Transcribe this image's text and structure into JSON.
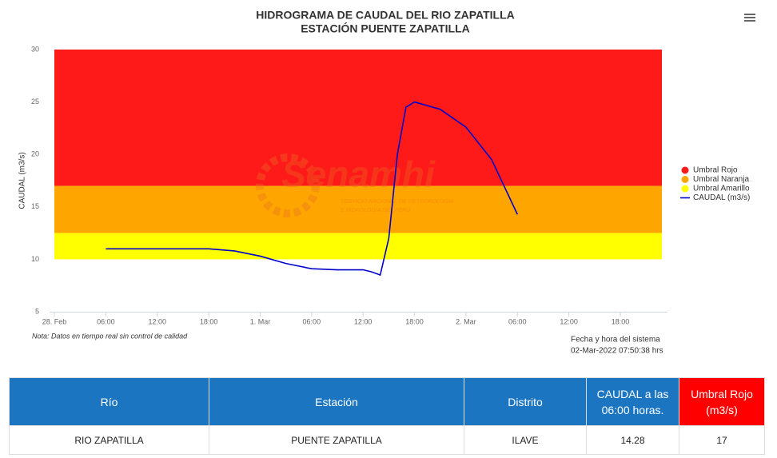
{
  "chart_data": {
    "type": "line",
    "title": "HIDROGRAMA DE CAUDAL DEL RIO ZAPATILLA",
    "subtitle": "ESTACIÓN PUENTE ZAPATILLA",
    "y_label": "CAUDAL (m3/s)",
    "ylim": [
      5,
      30
    ],
    "yticks": [
      5,
      10,
      15,
      20,
      25,
      30
    ],
    "xlim": [
      -0.56,
      71.5
    ],
    "xticks": [
      {
        "value": 0,
        "label": "28. Feb"
      },
      {
        "value": 6,
        "label": "06:00"
      },
      {
        "value": 12,
        "label": "12:00"
      },
      {
        "value": 18,
        "label": "18:00"
      },
      {
        "value": 24,
        "label": "1. Mar"
      },
      {
        "value": 30,
        "label": "06:00"
      },
      {
        "value": 36,
        "label": "12:00"
      },
      {
        "value": 42,
        "label": "18:00"
      },
      {
        "value": 48,
        "label": "2. Mar"
      },
      {
        "value": 54,
        "label": "06:00"
      },
      {
        "value": 60,
        "label": "12:00"
      },
      {
        "value": 66,
        "label": "18:00"
      }
    ],
    "bands": [
      {
        "name": "Umbral Rojo",
        "color": "#ff1a1a",
        "from": 17,
        "to": 30
      },
      {
        "name": "Umbral Naranja",
        "color": "#ffa500",
        "from": 12.5,
        "to": 17
      },
      {
        "name": "Umbral Amarillo",
        "color": "#ffff00",
        "from": 10,
        "to": 12.5
      }
    ],
    "series": [
      {
        "name": "CAUDAL (m3/s)",
        "color": "#0000cc",
        "x": [
          6,
          12,
          18,
          21,
          24,
          27,
          30,
          33,
          36,
          37,
          38,
          39,
          40,
          41,
          42,
          45,
          48,
          51,
          54
        ],
        "values": [
          11,
          11,
          11,
          10.8,
          10.3,
          9.6,
          9.1,
          9.0,
          9.0,
          8.8,
          8.5,
          12,
          20,
          24.5,
          25,
          24.3,
          22.6,
          19.5,
          14.28
        ]
      }
    ],
    "note": "Nota: Datos en tiempo real sin control de calidad",
    "system_label": "Fecha y hora del sistema",
    "system_time": "02-Mar-2022 07:50:38 hrs",
    "watermark": {
      "brand": "Senamhi",
      "line1": "SERVICIO NACIONAL DE METEOROLOGÍA",
      "line2": "E HIDROLOGÍA DEL PERÚ"
    }
  },
  "table": {
    "header": [
      "Río",
      "Estación",
      "Distrito",
      "CAUDAL a las 06:00 horas.",
      "Umbral Rojo (m3/s)"
    ],
    "rows": [
      [
        "RIO ZAPATILLA",
        "PUENTE ZAPATILLA",
        "ILAVE",
        "14.28",
        "17"
      ]
    ]
  }
}
